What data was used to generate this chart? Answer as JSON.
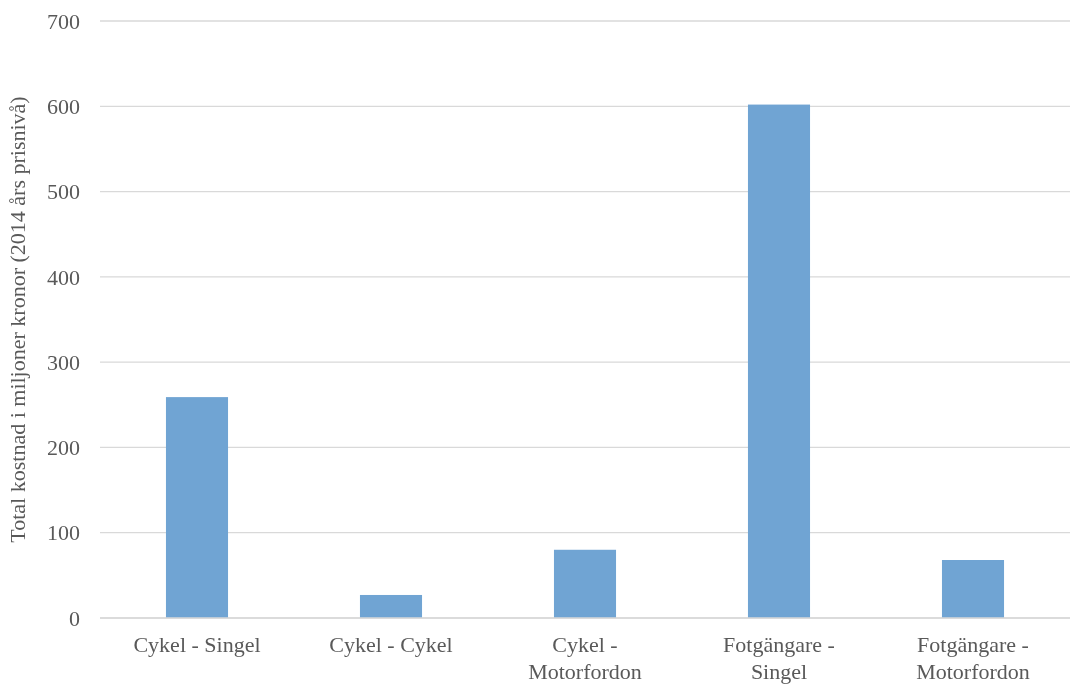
{
  "chart_data": {
    "type": "bar",
    "ylabel": "Total kostnad i miljoner kronor (2014 års prisnivå)",
    "categories": [
      "Cykel - Singel",
      "Cykel - Cykel",
      "Cykel - Motorfordon",
      "Fotgängare - Singel",
      "Fotgängare - Motorfordon"
    ],
    "values": [
      259,
      27,
      80,
      602,
      68
    ],
    "color": "#70a4d3",
    "ylim": [
      0,
      700
    ],
    "yticks": [
      0,
      100,
      200,
      300,
      400,
      500,
      600,
      700
    ],
    "grid": "y"
  }
}
